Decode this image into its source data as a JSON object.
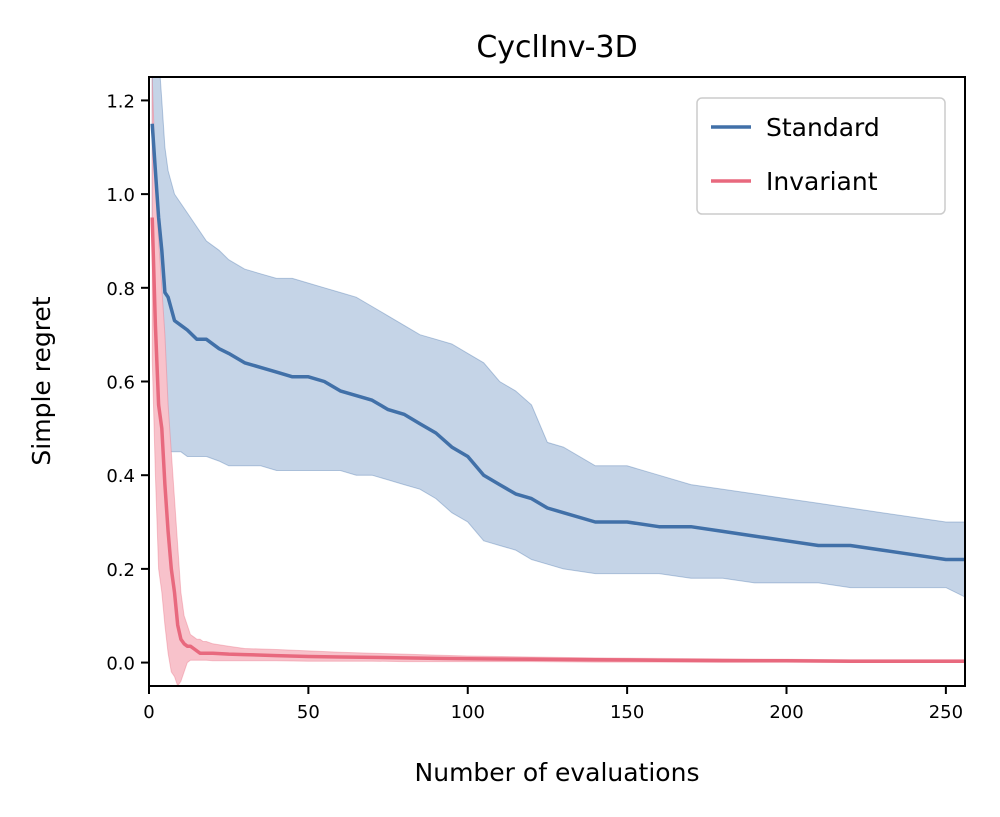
{
  "chart_data": {
    "type": "line",
    "title": "CyclInv-3D",
    "xlabel": "Number of evaluations",
    "ylabel": "Simple regret",
    "xlim": [
      0,
      256
    ],
    "ylim": [
      -0.05,
      1.25
    ],
    "xticks": [
      0,
      50,
      100,
      150,
      200,
      250
    ],
    "yticks": [
      0.0,
      0.2,
      0.4,
      0.6,
      0.8,
      1.0,
      1.2
    ],
    "xtick_labels": [
      "0",
      "50",
      "100",
      "150",
      "200",
      "250"
    ],
    "ytick_labels": [
      "0.0",
      "0.2",
      "0.4",
      "0.6",
      "0.8",
      "1.0",
      "1.2"
    ],
    "grid": false,
    "legend_position": "top-right",
    "series": [
      {
        "name": "Standard",
        "color": "#4170a8",
        "band_color": "#c5d4e7",
        "x": [
          1,
          2,
          3,
          4,
          5,
          6,
          8,
          10,
          12,
          15,
          18,
          22,
          25,
          30,
          35,
          40,
          45,
          50,
          55,
          60,
          65,
          70,
          75,
          80,
          85,
          90,
          95,
          100,
          105,
          110,
          115,
          120,
          125,
          130,
          140,
          150,
          160,
          170,
          180,
          190,
          200,
          210,
          220,
          230,
          240,
          250,
          256
        ],
        "y": [
          1.15,
          1.05,
          0.95,
          0.88,
          0.79,
          0.78,
          0.73,
          0.72,
          0.71,
          0.69,
          0.69,
          0.67,
          0.66,
          0.64,
          0.63,
          0.62,
          0.61,
          0.61,
          0.6,
          0.58,
          0.57,
          0.56,
          0.54,
          0.53,
          0.51,
          0.49,
          0.46,
          0.44,
          0.4,
          0.38,
          0.36,
          0.35,
          0.33,
          0.32,
          0.3,
          0.3,
          0.29,
          0.29,
          0.28,
          0.27,
          0.26,
          0.25,
          0.25,
          0.24,
          0.23,
          0.22,
          0.22
        ],
        "upper": [
          1.4,
          1.35,
          1.3,
          1.2,
          1.1,
          1.05,
          1.0,
          0.98,
          0.96,
          0.93,
          0.9,
          0.88,
          0.86,
          0.84,
          0.83,
          0.82,
          0.82,
          0.81,
          0.8,
          0.79,
          0.78,
          0.76,
          0.74,
          0.72,
          0.7,
          0.69,
          0.68,
          0.66,
          0.64,
          0.6,
          0.58,
          0.55,
          0.47,
          0.46,
          0.42,
          0.42,
          0.4,
          0.38,
          0.37,
          0.36,
          0.35,
          0.34,
          0.33,
          0.32,
          0.31,
          0.3,
          0.3
        ],
        "lower": [
          0.9,
          0.75,
          0.6,
          0.55,
          0.47,
          0.45,
          0.45,
          0.45,
          0.44,
          0.44,
          0.44,
          0.43,
          0.42,
          0.42,
          0.42,
          0.41,
          0.41,
          0.41,
          0.41,
          0.41,
          0.4,
          0.4,
          0.39,
          0.38,
          0.37,
          0.35,
          0.32,
          0.3,
          0.26,
          0.25,
          0.24,
          0.22,
          0.21,
          0.2,
          0.19,
          0.19,
          0.19,
          0.18,
          0.18,
          0.17,
          0.17,
          0.17,
          0.16,
          0.16,
          0.16,
          0.16,
          0.14
        ]
      },
      {
        "name": "Invariant",
        "color": "#e8697e",
        "band_color": "#f8c2cb",
        "x": [
          1,
          2,
          3,
          4,
          5,
          6,
          7,
          8,
          9,
          10,
          11,
          12,
          13,
          14,
          15,
          16,
          17,
          18,
          20,
          25,
          30,
          40,
          50,
          60,
          70,
          80,
          90,
          100,
          120,
          140,
          160,
          180,
          200,
          220,
          240,
          256
        ],
        "y": [
          0.95,
          0.72,
          0.55,
          0.5,
          0.38,
          0.28,
          0.2,
          0.15,
          0.08,
          0.05,
          0.04,
          0.035,
          0.035,
          0.03,
          0.025,
          0.02,
          0.02,
          0.02,
          0.02,
          0.018,
          0.017,
          0.015,
          0.013,
          0.012,
          0.011,
          0.01,
          0.009,
          0.008,
          0.007,
          0.006,
          0.005,
          0.004,
          0.004,
          0.003,
          0.003,
          0.003
        ],
        "upper": [
          1.25,
          1.05,
          0.9,
          0.8,
          0.7,
          0.55,
          0.45,
          0.35,
          0.25,
          0.15,
          0.1,
          0.08,
          0.06,
          0.055,
          0.05,
          0.05,
          0.045,
          0.045,
          0.04,
          0.035,
          0.03,
          0.028,
          0.025,
          0.022,
          0.02,
          0.018,
          0.016,
          0.014,
          0.012,
          0.01,
          0.009,
          0.008,
          0.007,
          0.006,
          0.006,
          0.006
        ],
        "lower": [
          0.65,
          0.4,
          0.2,
          0.15,
          0.08,
          0.02,
          -0.02,
          -0.03,
          -0.05,
          -0.04,
          -0.02,
          0.0,
          0.005,
          0.005,
          0.005,
          0.005,
          0.005,
          0.005,
          0.004,
          0.004,
          0.004,
          0.004,
          0.003,
          0.003,
          0.003,
          0.002,
          0.002,
          0.002,
          0.002,
          0.001,
          0.001,
          0.001,
          0.001,
          0.001,
          0.001,
          0.001
        ]
      }
    ]
  }
}
